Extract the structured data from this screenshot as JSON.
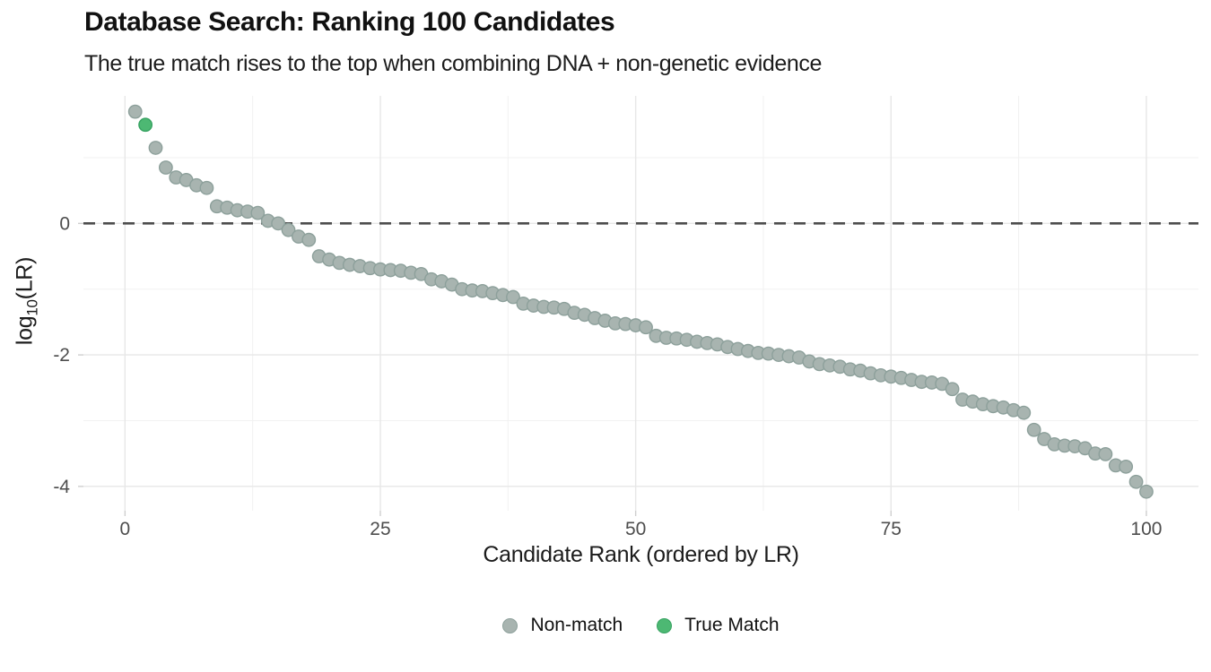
{
  "title": "Database Search: Ranking 100 Candidates",
  "subtitle": "The true match rises to the top when combining DNA + non-genetic evidence",
  "chart_data": {
    "type": "scatter",
    "title": "Database Search: Ranking 100 Candidates",
    "subtitle": "The true match rises to the top when combining DNA + non-genetic evidence",
    "xlabel": "Candidate Rank (ordered by LR)",
    "ylabel": "log10(LR)",
    "ylabel_parts": {
      "prefix": "log",
      "sub": "10",
      "suffix": "(LR)"
    },
    "xlim": [
      -4.07,
      105.1
    ],
    "ylim": [
      -4.37,
      1.94
    ],
    "x_major_ticks": [
      0,
      25,
      50,
      75,
      100
    ],
    "x_minor_ticks": [
      12.5,
      37.5,
      62.5,
      87.5
    ],
    "y_major_ticks": [
      0,
      -2,
      -4
    ],
    "y_minor_ticks": [
      1,
      -1,
      -3
    ],
    "grid": true,
    "legend_position": "bottom-center",
    "threshold_line": {
      "y": 0,
      "style": "dashed",
      "color": "#4d4d4d"
    },
    "true_match_rank": 2,
    "series": [
      {
        "name": "candidates",
        "x_start_rank": 1,
        "values": [
          1.7,
          1.5,
          1.15,
          0.85,
          0.7,
          0.66,
          0.58,
          0.54,
          0.26,
          0.24,
          0.2,
          0.18,
          0.16,
          0.04,
          0.0,
          -0.1,
          -0.2,
          -0.25,
          -0.5,
          -0.55,
          -0.6,
          -0.63,
          -0.65,
          -0.68,
          -0.7,
          -0.71,
          -0.72,
          -0.75,
          -0.77,
          -0.85,
          -0.88,
          -0.93,
          -1.0,
          -1.02,
          -1.03,
          -1.06,
          -1.09,
          -1.12,
          -1.22,
          -1.25,
          -1.27,
          -1.28,
          -1.3,
          -1.36,
          -1.39,
          -1.44,
          -1.48,
          -1.52,
          -1.53,
          -1.55,
          -1.58,
          -1.71,
          -1.74,
          -1.75,
          -1.77,
          -1.8,
          -1.82,
          -1.84,
          -1.88,
          -1.91,
          -1.94,
          -1.97,
          -1.98,
          -2.0,
          -2.02,
          -2.04,
          -2.1,
          -2.14,
          -2.16,
          -2.18,
          -2.22,
          -2.24,
          -2.28,
          -2.31,
          -2.33,
          -2.35,
          -2.38,
          -2.41,
          -2.42,
          -2.44,
          -2.52,
          -2.68,
          -2.71,
          -2.75,
          -2.78,
          -2.8,
          -2.84,
          -2.88,
          -3.14,
          -3.28,
          -3.36,
          -3.38,
          -3.39,
          -3.42,
          -3.5,
          -3.51,
          -3.68,
          -3.7,
          -3.93,
          -4.08
        ]
      }
    ],
    "legend": [
      {
        "label": "Non-match",
        "color": "#a8b4b0",
        "stroke": "#8da09b"
      },
      {
        "label": "True Match",
        "color": "#4db873",
        "stroke": "#36a261"
      }
    ],
    "colors": {
      "grid_major": "#e7e7e7",
      "grid_minor": "#f1f1f1",
      "tick_mark": "#cfcfcf",
      "tick_label": "#4d4d4d",
      "threshold": "#4d4d4d"
    }
  }
}
